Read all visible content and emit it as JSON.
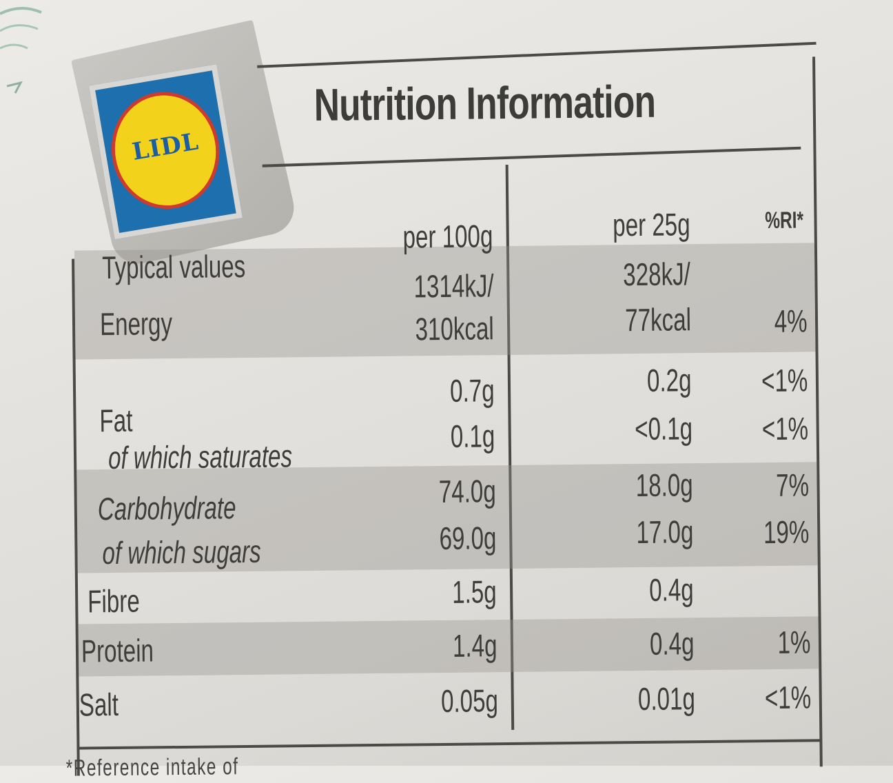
{
  "title": "Nutrition Information",
  "logo": {
    "text": "LIDL",
    "colors": {
      "blue": "#1d6fae",
      "yellow": "#f3d21c",
      "red": "#d03a2c"
    }
  },
  "header": {
    "label": "Typical values",
    "col1": "per 100g",
    "col2": "per 25g",
    "col3": "%RI*"
  },
  "rows": {
    "energy": {
      "label": "Energy",
      "kj100": "1314kJ/",
      "kcal100": "310kcal",
      "kj25": "328kJ/",
      "kcal25": "77kcal",
      "ri": "4%"
    },
    "fat": {
      "label": "Fat",
      "v100": "0.7g",
      "v25": "0.2g",
      "ri": "<1%"
    },
    "saturates": {
      "label": "of which saturates",
      "v100": "0.1g",
      "v25": "<0.1g",
      "ri": "<1%"
    },
    "carbohydrate": {
      "label": "Carbohydrate",
      "v100": "74.0g",
      "v25": "18.0g",
      "ri": "7%"
    },
    "sugars": {
      "label": "of which sugars",
      "v100": "69.0g",
      "v25": "17.0g",
      "ri": "19%"
    },
    "fibre": {
      "label": "Fibre",
      "v100": "1.5g",
      "v25": "0.4g"
    },
    "protein": {
      "label": "Protein",
      "v100": "1.4g",
      "v25": "0.4g",
      "ri": "1%"
    },
    "salt": {
      "label": "Salt",
      "v100": "0.05g",
      "v25": "0.01g",
      "ri": "<1%"
    }
  },
  "footnote": "*Reference intake of"
}
